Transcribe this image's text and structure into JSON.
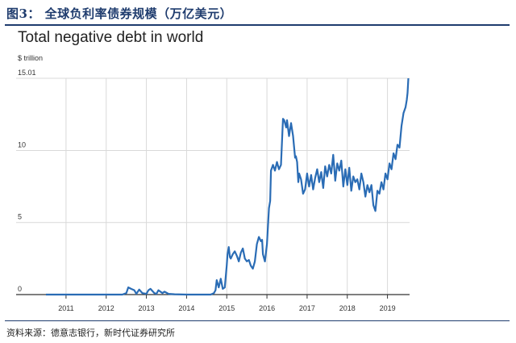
{
  "caption": "图3： 全球负利率债券规模（万亿美元）",
  "source": "资料来源：德意志银行，新时代证券研究所",
  "colors": {
    "line": "#2a6cb5",
    "grid": "#d9d9d9",
    "axis": "#333333",
    "caption": "#1f3c6e"
  },
  "chart_data": {
    "type": "line",
    "title": "Total negative debt in world",
    "ylabel": "$ trillion",
    "xlabel": "",
    "xlim": [
      2010.4,
      2019.55
    ],
    "ylim": [
      0,
      15.01
    ],
    "yticks": [
      0,
      5,
      10,
      15.01
    ],
    "ytick_labels": [
      "0",
      "5",
      "10",
      "15.01"
    ],
    "xticks": [
      2011,
      2012,
      2013,
      2014,
      2015,
      2016,
      2017,
      2018,
      2019
    ],
    "xtick_labels": [
      "2011",
      "2012",
      "2013",
      "2014",
      "2015",
      "2016",
      "2017",
      "2018",
      "2019"
    ],
    "grid": "vertical",
    "series": [
      {
        "x": [
          2010.5,
          2010.8,
          2011.2,
          2011.6,
          2012.0,
          2012.4,
          2012.5,
          2012.55,
          2012.62,
          2012.7,
          2012.75,
          2012.82,
          2012.9,
          2013.0,
          2013.05,
          2013.1,
          2013.2,
          2013.25,
          2013.3,
          2013.4,
          2013.45,
          2013.55,
          2013.7,
          2014.0,
          2014.3,
          2014.6,
          2014.68,
          2014.72,
          2014.75,
          2014.8,
          2014.85,
          2014.9,
          2014.95,
          2015.0,
          2015.02,
          2015.05,
          2015.08,
          2015.1,
          2015.15,
          2015.2,
          2015.25,
          2015.3,
          2015.35,
          2015.4,
          2015.45,
          2015.5,
          2015.55,
          2015.6,
          2015.65,
          2015.7,
          2015.75,
          2015.8,
          2015.85,
          2015.88,
          2015.9,
          2015.95,
          2016.0,
          2016.05,
          2016.08,
          2016.1,
          2016.15,
          2016.2,
          2016.25,
          2016.3,
          2016.35,
          2016.4,
          2016.43,
          2016.48,
          2016.5,
          2016.55,
          2016.6,
          2016.65,
          2016.7,
          2016.72,
          2016.75,
          2016.78,
          2016.8,
          2016.85,
          2016.9,
          2016.95,
          2017.0,
          2017.05,
          2017.1,
          2017.15,
          2017.2,
          2017.25,
          2017.3,
          2017.35,
          2017.4,
          2017.45,
          2017.5,
          2017.55,
          2017.6,
          2017.65,
          2017.7,
          2017.75,
          2017.8,
          2017.85,
          2017.9,
          2017.95,
          2018.0,
          2018.05,
          2018.1,
          2018.15,
          2018.2,
          2018.25,
          2018.3,
          2018.35,
          2018.4,
          2018.45,
          2018.5,
          2018.55,
          2018.6,
          2018.65,
          2018.7,
          2018.75,
          2018.8,
          2018.85,
          2018.9,
          2018.95,
          2019.0,
          2019.05,
          2019.1,
          2019.15,
          2019.2,
          2019.25,
          2019.3,
          2019.35,
          2019.4,
          2019.45,
          2019.48,
          2019.5,
          2019.52
        ],
        "y": [
          0,
          0,
          0,
          0,
          0,
          0,
          0.1,
          0.5,
          0.4,
          0.3,
          0.05,
          0.35,
          0.1,
          0.05,
          0.3,
          0.4,
          0.1,
          0.05,
          0.3,
          0.1,
          0.2,
          0.05,
          0.02,
          0,
          0,
          0,
          0.1,
          0.3,
          1.0,
          0.5,
          1.1,
          0.4,
          0.5,
          2.0,
          2.8,
          3.3,
          2.6,
          2.5,
          2.8,
          3.0,
          2.7,
          2.3,
          2.9,
          3.2,
          2.5,
          2.3,
          2.4,
          2.0,
          1.8,
          2.3,
          3.5,
          4.0,
          3.7,
          3.8,
          2.8,
          2.3,
          3.5,
          6.0,
          6.5,
          8.6,
          9.0,
          8.6,
          9.2,
          8.7,
          9.0,
          12.2,
          12.1,
          11.6,
          12.1,
          11.0,
          11.9,
          11.0,
          9.5,
          9.6,
          9.2,
          7.8,
          8.4,
          8.0,
          7.0,
          7.3,
          8.4,
          7.5,
          8.3,
          7.3,
          8.1,
          8.7,
          7.8,
          8.5,
          7.4,
          8.9,
          8.2,
          9.0,
          8.4,
          9.7,
          7.9,
          9.1,
          8.6,
          9.3,
          7.5,
          8.7,
          7.6,
          8.8,
          7.2,
          8.2,
          7.8,
          8.0,
          7.3,
          8.4,
          7.8,
          6.8,
          7.6,
          7.1,
          7.6,
          6.2,
          5.8,
          7.2,
          7.0,
          7.8,
          7.3,
          8.4,
          8.0,
          9.1,
          8.7,
          9.8,
          9.4,
          10.4,
          10.2,
          11.7,
          12.6,
          13.0,
          13.5,
          14.0,
          15.01
        ]
      }
    ]
  }
}
